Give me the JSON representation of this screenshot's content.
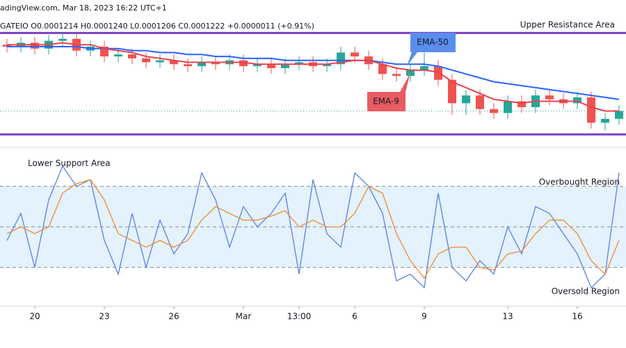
{
  "chart_data": {
    "type": "candlestick",
    "source": "adingView.com, Mar 18, 2023 16:22 UTC+1",
    "ohlc": "GATEIO O0.0001214 H0.0001240 L0.0001206 C0.0001222 +0.0000011 (+0.91%)",
    "categories": [
      null,
      null,
      "20",
      null,
      null,
      null,
      null,
      "23",
      null,
      null,
      null,
      null,
      "26",
      null,
      null,
      null,
      null,
      "Mar",
      null,
      null,
      null,
      "13:00",
      null,
      null,
      null,
      "6",
      null,
      null,
      null,
      null,
      "9",
      null,
      null,
      null,
      null,
      null,
      "13",
      null,
      null,
      null,
      null,
      "16",
      null,
      null,
      null
    ],
    "open": [
      0.0001256,
      0.0001255,
      0.0001257,
      0.0001254,
      0.0001258,
      0.0001259,
      0.0001253,
      0.0001255,
      0.000125,
      0.0001251,
      0.0001249,
      0.0001247,
      0.0001248,
      0.0001246,
      0.0001245,
      0.0001247,
      0.0001246,
      0.0001248,
      0.0001245,
      0.0001246,
      0.0001244,
      0.0001246,
      0.0001247,
      0.0001245,
      0.0001246,
      0.0001252,
      0.000125,
      0.0001246,
      0.0001241,
      0.000124,
      0.0001243,
      0.0001245,
      0.0001238,
      0.0001226,
      0.000123,
      0.0001223,
      0.0001221,
      0.0001227,
      0.0001224,
      0.000123,
      0.0001228,
      0.0001226,
      0.0001229,
      0.0001216,
      0.0001218
    ],
    "high": [
      0.0001259,
      0.000126,
      0.000126,
      0.0001261,
      0.0001262,
      0.0001262,
      0.0001258,
      0.0001258,
      0.0001254,
      0.0001254,
      0.0001252,
      0.0001251,
      0.0001251,
      0.0001249,
      0.000125,
      0.000125,
      0.0001251,
      0.0001251,
      0.0001249,
      0.0001249,
      0.0001249,
      0.000125,
      0.000125,
      0.0001249,
      0.0001255,
      0.0001255,
      0.0001253,
      0.0001249,
      0.0001244,
      0.0001246,
      0.0001252,
      0.0001248,
      0.0001241,
      0.0001233,
      0.0001233,
      0.0001226,
      0.000123,
      0.000123,
      0.0001233,
      0.0001233,
      0.0001231,
      0.0001232,
      0.0001232,
      0.0001221,
      0.0001225
    ],
    "low": [
      0.0001252,
      0.0001252,
      0.0001251,
      0.0001251,
      0.0001255,
      0.000125,
      0.000125,
      0.0001247,
      0.0001247,
      0.0001246,
      0.0001244,
      0.0001244,
      0.0001243,
      0.0001242,
      0.0001242,
      0.0001243,
      0.0001243,
      0.0001242,
      0.0001242,
      0.0001241,
      0.0001241,
      0.0001243,
      0.0001242,
      0.0001242,
      0.0001243,
      0.0001247,
      0.0001243,
      0.0001238,
      0.0001237,
      0.0001237,
      0.000124,
      0.0001235,
      0.000122,
      0.000122,
      0.000122,
      0.0001218,
      0.0001218,
      0.0001221,
      0.0001221,
      0.0001225,
      0.0001223,
      0.0001223,
      0.0001213,
      0.0001212,
      0.0001215
    ],
    "close": [
      0.0001255,
      0.0001257,
      0.0001254,
      0.0001258,
      0.0001259,
      0.0001253,
      0.0001255,
      0.000125,
      0.0001251,
      0.0001249,
      0.0001247,
      0.0001248,
      0.0001246,
      0.0001245,
      0.0001247,
      0.0001246,
      0.0001248,
      0.0001245,
      0.0001246,
      0.0001244,
      0.0001246,
      0.0001247,
      0.0001245,
      0.0001246,
      0.0001252,
      0.000125,
      0.0001246,
      0.0001241,
      0.000124,
      0.0001243,
      0.0001245,
      0.0001238,
      0.0001226,
      0.000123,
      0.0001223,
      0.0001221,
      0.0001227,
      0.0001224,
      0.000123,
      0.0001228,
      0.0001226,
      0.0001229,
      0.0001216,
      0.0001218,
      0.0001222
    ],
    "up_color": "#26a69a",
    "down_color": "#ef5350",
    "ylim": [
      0.0001204,
      0.000127
    ],
    "resistance": 0.0001262,
    "support": 0.000121,
    "resistance_label": "Upper Resistance Area",
    "support_label": "Lower Support Area",
    "lines": [
      {
        "name": "EMA-50",
        "color": "#2962ff",
        "values": [
          0.0001255,
          0.0001255,
          0.0001255,
          0.0001255,
          0.0001255,
          0.0001255,
          0.0001254,
          0.0001254,
          0.0001254,
          0.0001253,
          0.0001253,
          0.0001252,
          0.0001252,
          0.0001251,
          0.0001251,
          0.000125,
          0.000125,
          0.0001249,
          0.0001249,
          0.0001249,
          0.0001248,
          0.0001248,
          0.0001248,
          0.0001248,
          0.0001248,
          0.0001248,
          0.0001248,
          0.0001247,
          0.0001246,
          0.0001246,
          0.0001246,
          0.0001245,
          0.0001243,
          0.0001241,
          0.0001239,
          0.0001237,
          0.0001236,
          0.0001235,
          0.0001234,
          0.0001233,
          0.0001232,
          0.0001231,
          0.000123,
          0.0001229,
          0.0001228
        ]
      },
      {
        "name": "EMA-9",
        "color": "#e8414d",
        "values": [
          0.0001256,
          0.0001256,
          0.0001256,
          0.0001256,
          0.0001257,
          0.0001256,
          0.0001256,
          0.0001254,
          0.0001253,
          0.0001252,
          0.000125,
          0.0001249,
          0.0001248,
          0.0001247,
          0.0001247,
          0.0001247,
          0.0001247,
          0.0001247,
          0.0001246,
          0.0001246,
          0.0001246,
          0.0001246,
          0.0001246,
          0.0001246,
          0.0001247,
          0.0001248,
          0.0001248,
          0.0001246,
          0.0001244,
          0.0001243,
          0.0001243,
          0.0001242,
          0.0001237,
          0.0001234,
          0.0001231,
          0.0001228,
          0.0001227,
          0.0001226,
          0.0001227,
          0.0001227,
          0.0001227,
          0.0001227,
          0.0001224,
          0.0001222,
          0.0001222
        ]
      }
    ],
    "oscillator": {
      "ylim": [
        0,
        100
      ],
      "levels": [
        20,
        50,
        80
      ],
      "band_color": "#e3f2fd",
      "overbought_label": "Overbought Region",
      "oversold_label": "Oversold Region",
      "series": [
        {
          "color": "#5b7fe0",
          "values": [
            40,
            60,
            20,
            70,
            95,
            80,
            85,
            40,
            15,
            60,
            20,
            55,
            30,
            45,
            90,
            70,
            35,
            65,
            50,
            60,
            75,
            15,
            85,
            45,
            35,
            90,
            80,
            60,
            10,
            15,
            5,
            75,
            20,
            10,
            25,
            15,
            50,
            30,
            65,
            60,
            45,
            30,
            5,
            15,
            90
          ]
        },
        {
          "color": "#f08a34",
          "values": [
            45,
            50,
            45,
            50,
            75,
            82,
            85,
            70,
            45,
            40,
            35,
            40,
            35,
            40,
            55,
            65,
            60,
            55,
            55,
            58,
            62,
            50,
            55,
            50,
            50,
            60,
            80,
            75,
            45,
            25,
            12,
            30,
            35,
            35,
            20,
            18,
            30,
            32,
            45,
            55,
            55,
            45,
            25,
            15,
            40
          ]
        }
      ]
    }
  }
}
